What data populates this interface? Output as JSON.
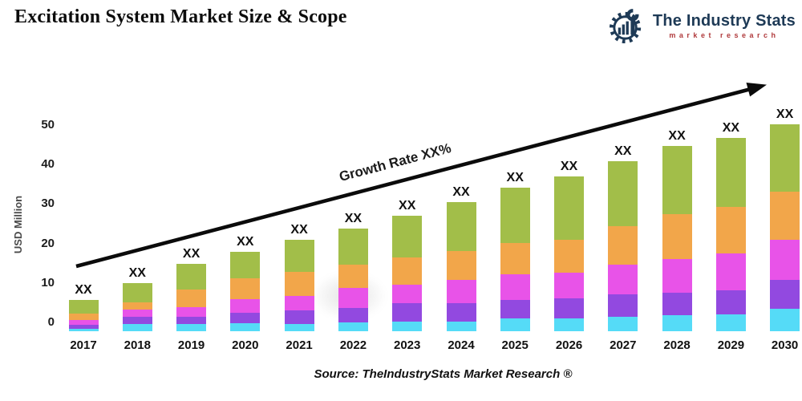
{
  "page": {
    "title": "Excitation System Market Size & Scope"
  },
  "logo": {
    "name": "The Industry Stats",
    "tagline": "market research",
    "navy": "#1e3a56",
    "red": "#b03a3c"
  },
  "chart_data": {
    "type": "bar",
    "stacked": true,
    "title": "",
    "xlabel": "",
    "ylabel": "USD Million",
    "ylim": [
      0,
      50
    ],
    "yticks": [
      0,
      10,
      20,
      30,
      40,
      50
    ],
    "grid": false,
    "legend": "none",
    "bar_data_label": "XX",
    "annotation": {
      "growth_label": "Growth Rate XX%"
    },
    "categories": [
      "2017",
      "2018",
      "2019",
      "2020",
      "2021",
      "2022",
      "2023",
      "2024",
      "2025",
      "2026",
      "2027",
      "2028",
      "2029",
      "2030"
    ],
    "series": [
      {
        "name": "segment-1-cyan",
        "color": "#55dbf7",
        "values": [
          0.5,
          1.5,
          1.5,
          1.8,
          1.7,
          2.0,
          2.2,
          2.3,
          3.0,
          3.1,
          3.5,
          3.9,
          4.0,
          5.4
        ]
      },
      {
        "name": "segment-2-purple",
        "color": "#9249e0",
        "values": [
          0.6,
          1.5,
          1.6,
          2.3,
          3.0,
          3.4,
          4.4,
          4.3,
          4.4,
          4.7,
          5.3,
          5.4,
          5.9,
          7.0
        ]
      },
      {
        "name": "segment-3-magenta",
        "color": "#e853e8",
        "values": [
          0.9,
          1.5,
          2.2,
          3.1,
          3.4,
          4.6,
          4.2,
          5.5,
          6.2,
          6.2,
          7.1,
          8.1,
          8.9,
          9.7
        ]
      },
      {
        "name": "segment-4-orange",
        "color": "#f2a64a",
        "values": [
          1.3,
          1.5,
          3.8,
          4.7,
          5.5,
          5.4,
          6.4,
          6.9,
          7.3,
          7.9,
          9.4,
          10.8,
          11.3,
          11.8
        ]
      },
      {
        "name": "segment-5-green",
        "color": "#a2be49",
        "values": [
          2.5,
          4.0,
          5.7,
          6.0,
          7.3,
          8.4,
          9.8,
          11.5,
          13.2,
          15.1,
          15.6,
          16.6,
          16.6,
          16.4
        ]
      }
    ],
    "totals_est": [
      5.8,
      10.0,
      14.8,
      17.9,
      20.9,
      23.8,
      27.0,
      30.5,
      34.1,
      37.0,
      40.9,
      44.8,
      46.7,
      50.3
    ]
  },
  "source": {
    "text": "Source: TheIndustryStats Market Research ®"
  }
}
